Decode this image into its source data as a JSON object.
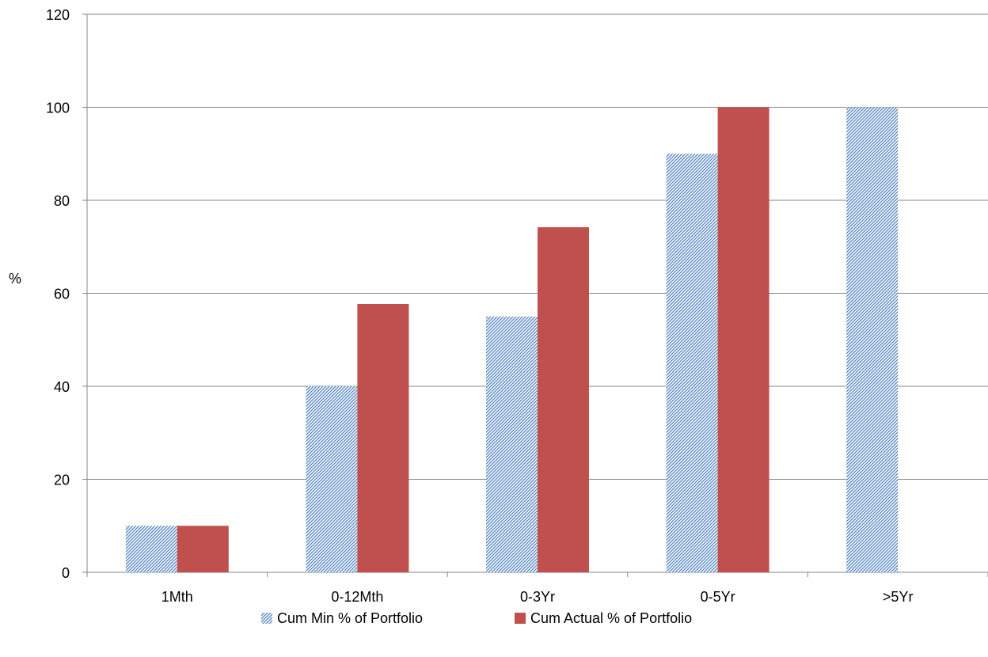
{
  "chart_data": {
    "type": "bar",
    "title": "",
    "xlabel": "",
    "ylabel": "%",
    "ylim": [
      0,
      120
    ],
    "yticks": [
      0,
      20,
      40,
      60,
      80,
      100,
      120
    ],
    "grid": true,
    "legend_position": "bottom",
    "categories": [
      "1Mth",
      "0-12Mth",
      "0-3Yr",
      "0-5Yr",
      ">5Yr"
    ],
    "series": [
      {
        "name": "Cum Min % of Portfolio",
        "values": [
          10,
          40,
          55,
          90,
          100
        ],
        "color": "#4f81bd",
        "pattern": "diagonal-hatch"
      },
      {
        "name": "Cum Actual % of Portfolio",
        "values": [
          10,
          57.7,
          74.2,
          100,
          null
        ],
        "color": "#c0504d",
        "pattern": "solid"
      }
    ]
  }
}
